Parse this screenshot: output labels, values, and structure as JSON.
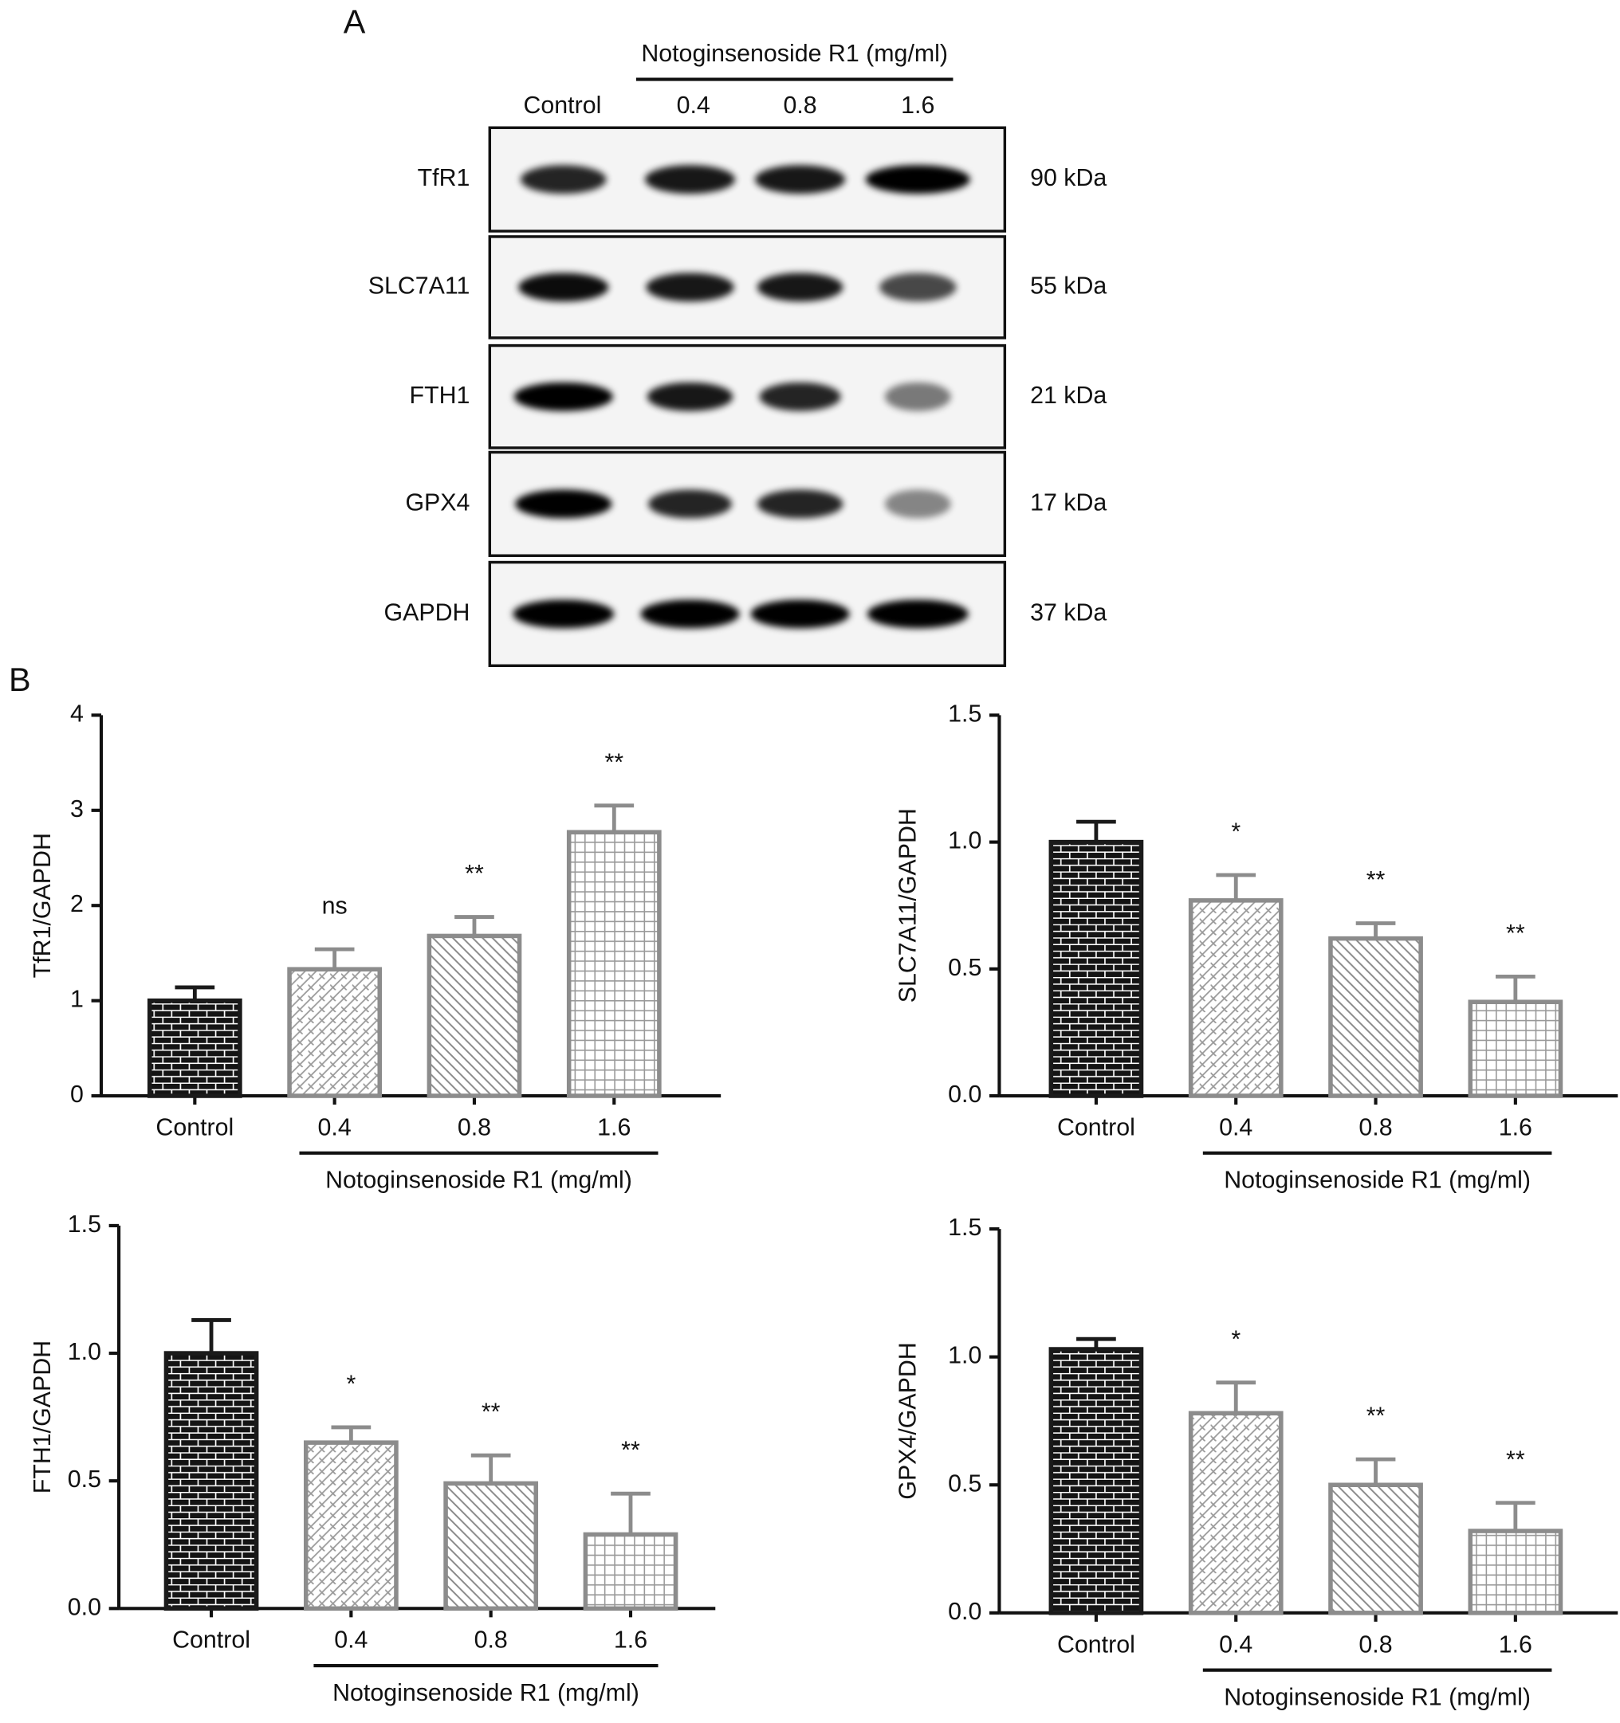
{
  "panel_labels": [
    "A",
    "B"
  ],
  "blot": {
    "treatment": "Notoginsenoside R1 (mg/ml)",
    "lanes": [
      "Control",
      "0.4",
      "0.8",
      "1.6"
    ],
    "rows": [
      {
        "protein": "TfR1",
        "size": "90 kDa"
      },
      {
        "protein": "SLC7A11",
        "size": "55 kDa"
      },
      {
        "protein": "FTH1",
        "size": "21 kDa"
      },
      {
        "protein": "GPX4",
        "size": "17 kDa"
      },
      {
        "protein": "GAPDH",
        "size": "37 kDa"
      }
    ]
  },
  "chart_data": [
    {
      "type": "bar",
      "y_label": "TfR1/GAPDH",
      "categories": [
        "Control",
        "0.4",
        "0.8",
        "1.6"
      ],
      "group_label": "Notoginsenoside R1 (mg/ml)",
      "values": [
        1.0,
        1.33,
        1.68,
        2.77
      ],
      "errors": [
        0.14,
        0.21,
        0.2,
        0.28
      ],
      "annotations": [
        null,
        "ns",
        "**",
        "**"
      ],
      "colors": [
        "#1a1a1a",
        "#8c8c8c",
        "#8c8c8c",
        "#8c8c8c"
      ],
      "patterns": [
        "brick",
        "weave",
        "diagonal",
        "grid"
      ],
      "ylim": [
        0,
        4
      ],
      "yticks": [
        0,
        1,
        2,
        3,
        4
      ]
    },
    {
      "type": "bar",
      "y_label": "SLC7A11/GAPDH",
      "categories": [
        "Control",
        "0.4",
        "0.8",
        "1.6"
      ],
      "group_label": "Notoginsenoside R1 (mg/ml)",
      "values": [
        1.0,
        0.77,
        0.62,
        0.37
      ],
      "errors": [
        0.08,
        0.1,
        0.06,
        0.1
      ],
      "annotations": [
        null,
        "*",
        "**",
        "**"
      ],
      "colors": [
        "#1a1a1a",
        "#8c8c8c",
        "#8c8c8c",
        "#8c8c8c"
      ],
      "patterns": [
        "brick",
        "weave",
        "diagonal",
        "grid"
      ],
      "ylim": [
        0,
        1.5
      ],
      "yticks": [
        {
          "value": 0,
          "label": "0.0"
        },
        0.5,
        {
          "value": 1,
          "label": "1.0"
        },
        1.5
      ]
    },
    {
      "type": "bar",
      "y_label": "FTH1/GAPDH",
      "categories": [
        "Control",
        "0.4",
        "0.8",
        "1.6"
      ],
      "group_label": "Notoginsenoside R1 (mg/ml)",
      "values": [
        1.0,
        0.65,
        0.49,
        0.29
      ],
      "errors": [
        0.13,
        0.06,
        0.11,
        0.16
      ],
      "annotations": [
        null,
        "*",
        "**",
        "**"
      ],
      "colors": [
        "#1a1a1a",
        "#8c8c8c",
        "#8c8c8c",
        "#8c8c8c"
      ],
      "patterns": [
        "brick",
        "weave",
        "diagonal",
        "grid"
      ],
      "ylim": [
        0,
        1.5
      ],
      "yticks": [
        {
          "value": 0,
          "label": "0.0"
        },
        0.5,
        {
          "value": 1,
          "label": "1.0"
        },
        1.5
      ]
    },
    {
      "type": "bar",
      "y_label": "GPX4/GAPDH",
      "categories": [
        "Control",
        "0.4",
        "0.8",
        "1.6"
      ],
      "group_label": "Notoginsenoside R1 (mg/ml)",
      "values": [
        1.03,
        0.78,
        0.5,
        0.32
      ],
      "errors": [
        0.04,
        0.12,
        0.1,
        0.11
      ],
      "annotations": [
        null,
        "*",
        "**",
        "**"
      ],
      "colors": [
        "#1a1a1a",
        "#8c8c8c",
        "#8c8c8c",
        "#8c8c8c"
      ],
      "patterns": [
        "brick",
        "weave",
        "diagonal",
        "grid"
      ],
      "ylim": [
        0,
        1.5
      ],
      "yticks": [
        {
          "value": 0,
          "label": "0.0"
        },
        0.5,
        {
          "value": 1,
          "label": "1.0"
        },
        1.5
      ]
    }
  ]
}
